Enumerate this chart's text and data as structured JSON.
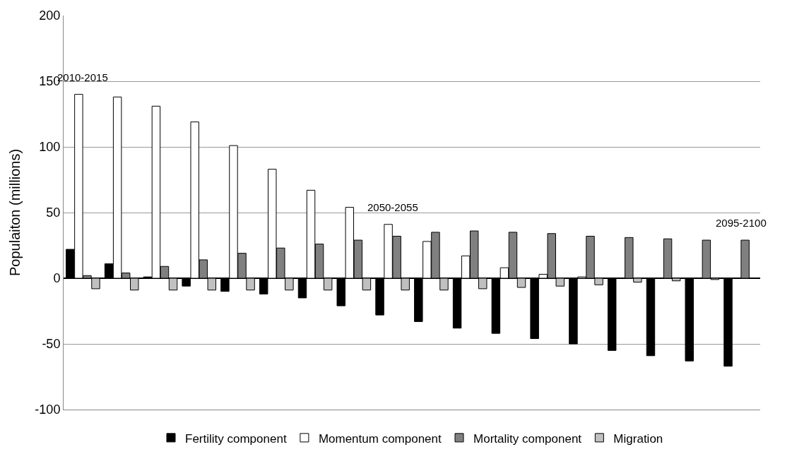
{
  "chart_data": {
    "type": "bar",
    "ylabel": "Populaiton (millions)",
    "categories": [
      "2010-2015",
      null,
      null,
      null,
      null,
      null,
      null,
      null,
      "2050-2055",
      null,
      null,
      null,
      null,
      null,
      null,
      null,
      null,
      "2095-2100"
    ],
    "series": [
      {
        "name": "Fertility component",
        "color": "#000000",
        "values": [
          22,
          11,
          1,
          -6,
          -10,
          -12,
          -15,
          -21,
          -28,
          -33,
          -38,
          -42,
          -46,
          -50,
          -55,
          -59,
          -63,
          -67
        ]
      },
      {
        "name": "Momentum component",
        "color": "#ffffff",
        "values": [
          140,
          138,
          131,
          119,
          101,
          83,
          67,
          54,
          41,
          28,
          17,
          8,
          3,
          1,
          0,
          0,
          0,
          0
        ]
      },
      {
        "name": "Mortality component",
        "color": "#808080",
        "values": [
          2,
          4,
          9,
          14,
          19,
          23,
          26,
          29,
          32,
          35,
          36,
          35,
          34,
          32,
          31,
          30,
          29,
          29
        ]
      },
      {
        "name": "Migration",
        "color": "#c0c0c0",
        "values": [
          -8,
          -9,
          -9,
          -9,
          -9,
          -9,
          -9,
          -9,
          -9,
          -9,
          -8,
          -7,
          -6,
          -5,
          -3,
          -2,
          -1,
          0
        ]
      }
    ],
    "ylim": [
      -100,
      200
    ],
    "yticks": [
      -100,
      -50,
      0,
      50,
      100,
      150,
      200
    ],
    "grid": "y",
    "legend": "bottom"
  }
}
